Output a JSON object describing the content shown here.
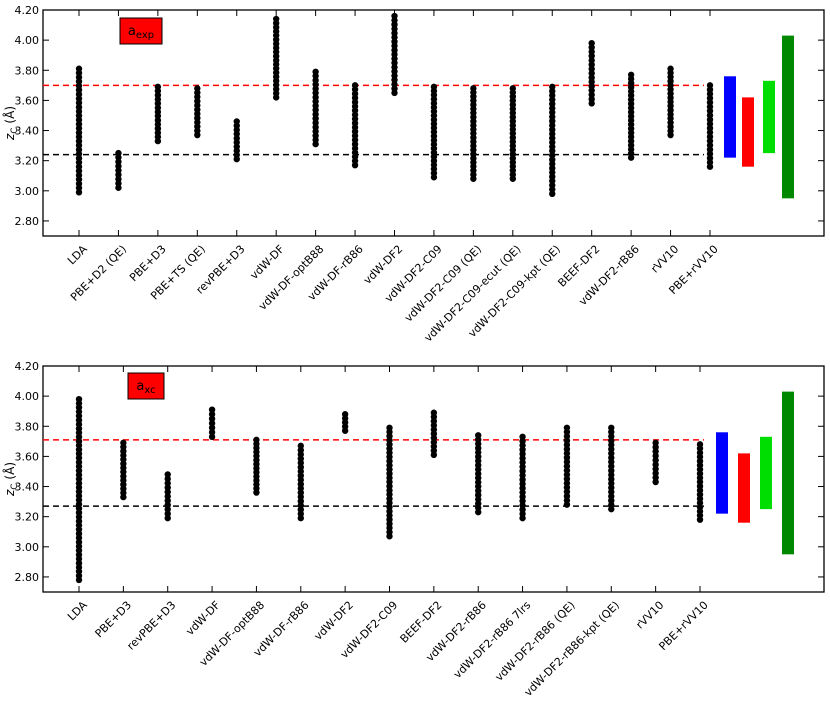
{
  "chart_data": [
    {
      "type": "scatter",
      "panel": "top",
      "legend_main": "a",
      "legend_sub": "exp",
      "legend_color": "#ff0000",
      "ylabel_main": "z",
      "ylabel_sub": "C",
      "ylabel_unit": " (Å)",
      "ylim": [
        2.7,
        4.2
      ],
      "yticks": [
        2.8,
        3.0,
        3.2,
        3.4,
        3.6,
        3.8,
        4.0,
        4.2
      ],
      "ytick_labels": [
        "2.80",
        "3.00",
        "3.20",
        "3.40",
        "3.60",
        "3.80",
        "4.00",
        "4.20"
      ],
      "red_line": 3.7,
      "black_line": 3.24,
      "categories": [
        "LDA",
        "PBE+D2 (QE)",
        "PBE+D3",
        "PBE+TS (QE)",
        "revPBE+D3",
        "vdW-DF",
        "vdW-DF-optB88",
        "vdW-DF-rB86",
        "vdW-DF2",
        "vdW-DF2-C09",
        "vdW-DF2-C09 (QE)",
        "vdW-DF2-C09-ecut (QE)",
        "vdW-DF2-C09-kpt (QE)",
        "BEEF-DF2",
        "vdW-DF2-rB86",
        "rVV10",
        "PBE+rVV10"
      ],
      "series": [
        {
          "name": "LDA",
          "min": 2.99,
          "max": 3.81
        },
        {
          "name": "PBE+D2 (QE)",
          "min": 3.02,
          "max": 3.25
        },
        {
          "name": "PBE+D3",
          "min": 3.33,
          "max": 3.69
        },
        {
          "name": "PBE+TS (QE)",
          "min": 3.37,
          "max": 3.68
        },
        {
          "name": "revPBE+D3",
          "min": 3.21,
          "max": 3.46
        },
        {
          "name": "vdW-DF",
          "min": 3.62,
          "max": 4.14
        },
        {
          "name": "vdW-DF-optB88",
          "min": 3.31,
          "max": 3.79
        },
        {
          "name": "vdW-DF-rB86",
          "min": 3.17,
          "max": 3.7
        },
        {
          "name": "vdW-DF2",
          "min": 3.65,
          "max": 4.16
        },
        {
          "name": "vdW-DF2-C09",
          "min": 3.09,
          "max": 3.69
        },
        {
          "name": "vdW-DF2-C09 (QE)",
          "min": 3.08,
          "max": 3.68
        },
        {
          "name": "vdW-DF2-C09-ecut (QE)",
          "min": 3.08,
          "max": 3.68
        },
        {
          "name": "vdW-DF2-C09-kpt (QE)",
          "min": 2.98,
          "max": 3.69
        },
        {
          "name": "BEEF-DF2",
          "min": 3.58,
          "max": 3.98
        },
        {
          "name": "vdW-DF2-rB86",
          "min": 3.22,
          "max": 3.77
        },
        {
          "name": "rVV10",
          "min": 3.37,
          "max": 3.81
        },
        {
          "name": "PBE+rVV10",
          "min": 3.16,
          "max": 3.7
        }
      ],
      "bars": [
        {
          "color": "#0000ff",
          "low": 3.22,
          "high": 3.76
        },
        {
          "color": "#ff0000",
          "low": 3.16,
          "high": 3.62
        },
        {
          "color": "#00dd00",
          "low": 3.25,
          "high": 3.73
        },
        {
          "color": "#008800",
          "low": 2.95,
          "high": 4.03
        }
      ]
    },
    {
      "type": "scatter",
      "panel": "bottom",
      "legend_main": "a",
      "legend_sub": "xc",
      "legend_color": "#ff0000",
      "ylabel_main": "z",
      "ylabel_sub": "C",
      "ylabel_unit": " (Å)",
      "ylim": [
        2.7,
        4.2
      ],
      "yticks": [
        2.8,
        3.0,
        3.2,
        3.4,
        3.6,
        3.8,
        4.0,
        4.2
      ],
      "ytick_labels": [
        "2.80",
        "3.00",
        "3.20",
        "3.40",
        "3.60",
        "3.80",
        "4.00",
        "4.20"
      ],
      "red_line": 3.71,
      "black_line": 3.27,
      "categories": [
        "LDA",
        "PBE+D3",
        "revPBE+D3",
        "vdW-DF",
        "vdW-DF-optB88",
        "vdW-DF-rB86",
        "vdW-DF2",
        "vdW-DF2-C09",
        "BEEF-DF2",
        "vdW-DF2-rB86",
        "vdW-DF2-rB86 7lrs",
        "vdW-DF2-rB86 (QE)",
        "vdW-DF2-rB86-kpt (QE)",
        "rVV10",
        "PBE+rVV10"
      ],
      "series": [
        {
          "name": "LDA",
          "min": 2.78,
          "max": 3.98
        },
        {
          "name": "PBE+D3",
          "min": 3.33,
          "max": 3.69
        },
        {
          "name": "revPBE+D3",
          "min": 3.19,
          "max": 3.48
        },
        {
          "name": "vdW-DF",
          "min": 3.73,
          "max": 3.91
        },
        {
          "name": "vdW-DF-optB88",
          "min": 3.36,
          "max": 3.71
        },
        {
          "name": "vdW-DF-rB86",
          "min": 3.19,
          "max": 3.67
        },
        {
          "name": "vdW-DF2",
          "min": 3.77,
          "max": 3.88
        },
        {
          "name": "vdW-DF2-C09",
          "min": 3.07,
          "max": 3.79
        },
        {
          "name": "BEEF-DF2",
          "min": 3.61,
          "max": 3.89
        },
        {
          "name": "vdW-DF2-rB86",
          "min": 3.23,
          "max": 3.74
        },
        {
          "name": "vdW-DF2-rB86 7lrs",
          "min": 3.19,
          "max": 3.73
        },
        {
          "name": "vdW-DF2-rB86 (QE)",
          "min": 3.28,
          "max": 3.79
        },
        {
          "name": "vdW-DF2-rB86-kpt (QE)",
          "min": 3.25,
          "max": 3.79
        },
        {
          "name": "rVV10",
          "min": 3.43,
          "max": 3.69
        },
        {
          "name": "PBE+rVV10",
          "min": 3.18,
          "max": 3.68
        }
      ],
      "bars": [
        {
          "color": "#0000ff",
          "low": 3.22,
          "high": 3.76
        },
        {
          "color": "#ff0000",
          "low": 3.16,
          "high": 3.62
        },
        {
          "color": "#00dd00",
          "low": 3.25,
          "high": 3.73
        },
        {
          "color": "#008800",
          "low": 2.95,
          "high": 4.03
        }
      ]
    }
  ]
}
